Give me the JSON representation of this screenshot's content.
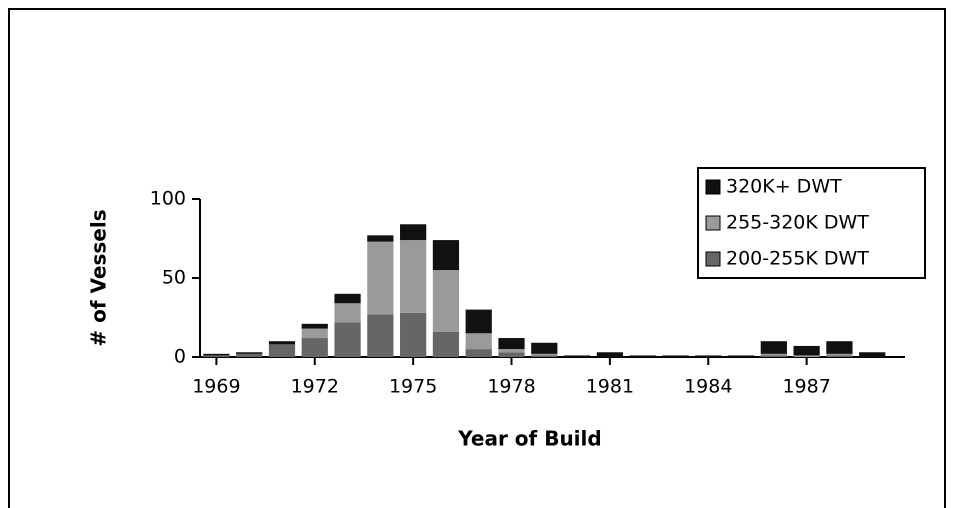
{
  "chart_data": {
    "type": "bar",
    "stacked": true,
    "x_label": "Year of Build",
    "y_label": "# of Vessels",
    "x": [
      1969,
      1970,
      1971,
      1972,
      1973,
      1974,
      1975,
      1976,
      1977,
      1978,
      1979,
      1980,
      1981,
      1982,
      1983,
      1984,
      1985,
      1986,
      1987,
      1988,
      1989
    ],
    "xlim": [
      1968.5,
      1990
    ],
    "xticks": [
      1969,
      1972,
      1975,
      1978,
      1981,
      1984,
      1987
    ],
    "ylim": [
      0,
      100
    ],
    "yticks": [
      0,
      50,
      100
    ],
    "legend": "upper right",
    "series": [
      {
        "name": "200-255K DWT",
        "color": "#666666",
        "values": [
          1,
          2,
          8,
          12,
          22,
          27,
          28,
          16,
          5,
          3,
          1,
          0,
          0,
          0,
          0,
          0,
          0,
          1,
          0,
          1,
          0
        ]
      },
      {
        "name": "255-320K DWT",
        "color": "#9a9a9a",
        "values": [
          0,
          0,
          0,
          6,
          12,
          46,
          46,
          39,
          10,
          2,
          1,
          0,
          0,
          0,
          0,
          0,
          0,
          1,
          1,
          1,
          0
        ]
      },
      {
        "name": "320K+ DWT",
        "color": "#111111",
        "values": [
          1,
          1,
          2,
          3,
          6,
          4,
          10,
          19,
          15,
          7,
          7,
          1,
          3,
          1,
          1,
          1,
          1,
          8,
          6,
          8,
          3
        ]
      }
    ]
  }
}
